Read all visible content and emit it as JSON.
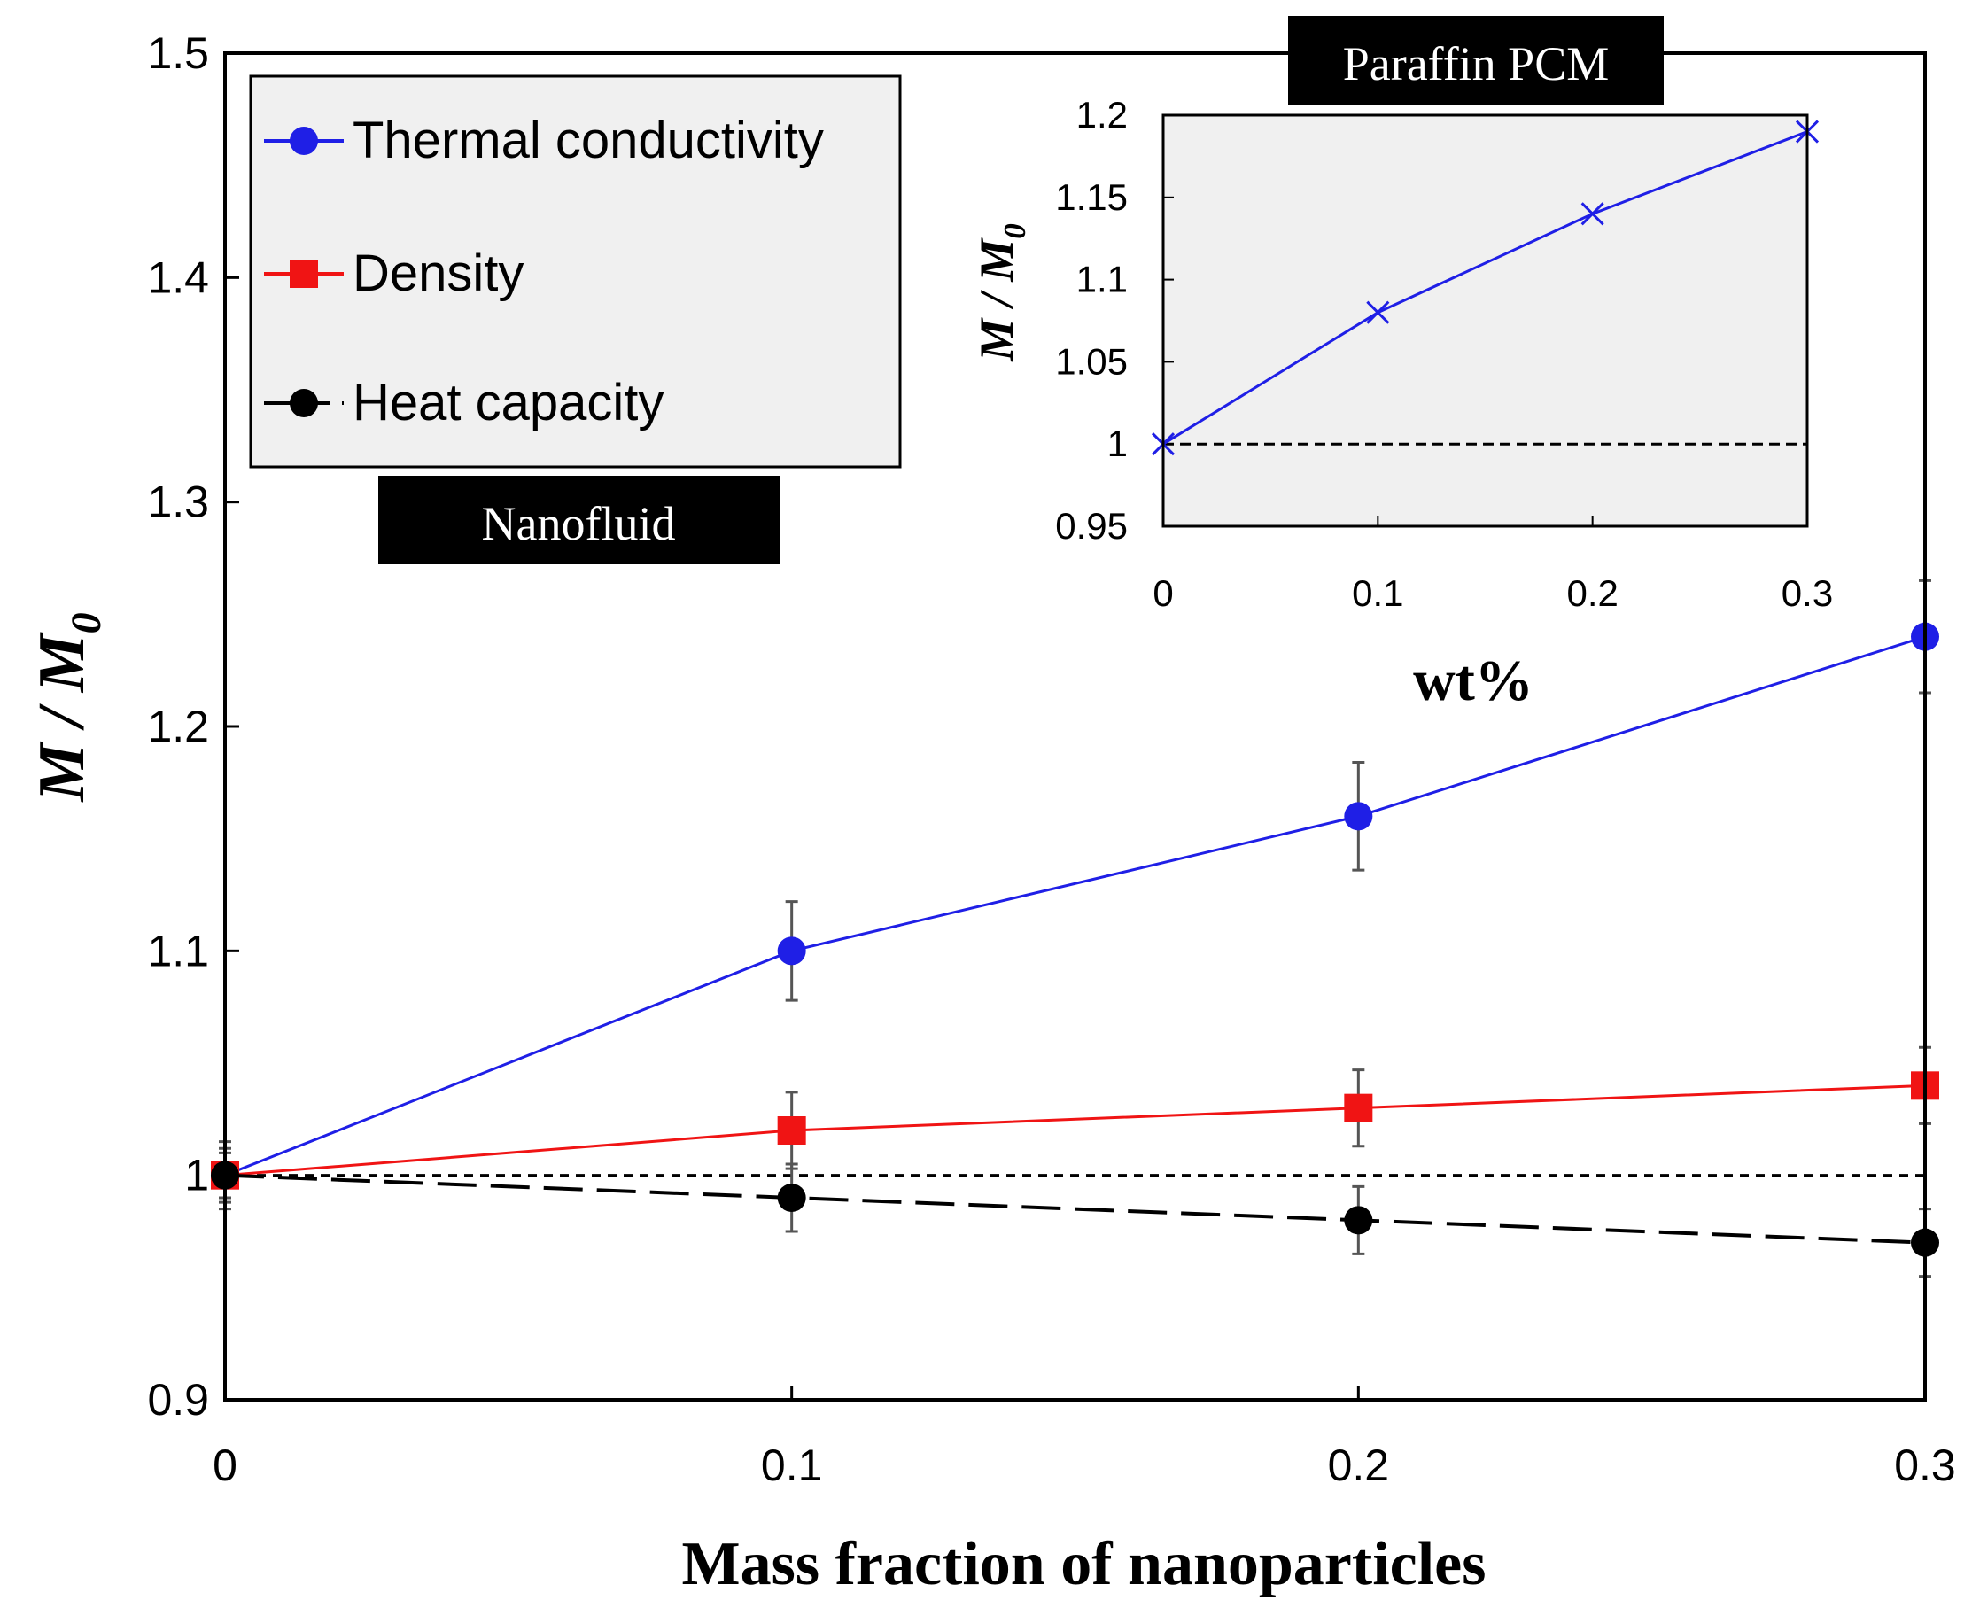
{
  "chart_data": [
    {
      "id": "main",
      "type": "line",
      "xlabel": "Mass fraction of nanoparticles",
      "ylabel_main": "M / M",
      "ylabel_sub": "0",
      "xlim": [
        0,
        0.3
      ],
      "ylim": [
        0.9,
        1.5
      ],
      "x_ticks": [
        0,
        0.1,
        0.2,
        0.3
      ],
      "x_tick_labels": [
        "0",
        "0.1",
        "0.2",
        "0.3"
      ],
      "y_ticks": [
        0.9,
        1.0,
        1.1,
        1.2,
        1.3,
        1.4,
        1.5
      ],
      "y_tick_labels": [
        "0.9",
        "1",
        "1.1",
        "1.2",
        "1.3",
        "1.4",
        "1.5"
      ],
      "reference_line": 1.0,
      "x": [
        0,
        0.1,
        0.2,
        0.3
      ],
      "series": [
        {
          "name": "Thermal conductivity",
          "values": [
            1.0,
            1.1,
            1.16,
            1.24
          ],
          "errors": [
            0.015,
            0.022,
            0.024,
            0.025
          ],
          "color": "#1f1fe6",
          "marker": "circle",
          "line": "solid"
        },
        {
          "name": "Density",
          "values": [
            1.0,
            1.02,
            1.03,
            1.04
          ],
          "errors": [
            0.012,
            0.017,
            0.017,
            0.017
          ],
          "color": "#f01414",
          "marker": "square",
          "line": "solid"
        },
        {
          "name": "Heat capacity",
          "values": [
            1.0,
            0.99,
            0.98,
            0.97
          ],
          "errors": [
            0.01,
            0.015,
            0.015,
            0.015
          ],
          "color": "#000000",
          "marker": "circle",
          "line": "dashed"
        }
      ],
      "legend_position": "top-left",
      "annotation": "Nanofluid"
    },
    {
      "id": "inset",
      "type": "line",
      "title": "Paraffin PCM",
      "xlabel": "wt%",
      "ylabel_main": "M / M",
      "ylabel_sub": "0",
      "xlim": [
        0,
        0.3
      ],
      "ylim": [
        0.95,
        1.2
      ],
      "x_ticks": [
        0,
        0.1,
        0.2,
        0.3
      ],
      "x_tick_labels": [
        "0",
        "0.1",
        "0.2",
        "0.3"
      ],
      "y_ticks": [
        0.95,
        1.0,
        1.05,
        1.1,
        1.15,
        1.2
      ],
      "y_tick_labels": [
        "0.95",
        "1",
        "1.05",
        "1.1",
        "1.15",
        "1.2"
      ],
      "reference_line": 1.0,
      "x": [
        0,
        0.1,
        0.2,
        0.3
      ],
      "series": [
        {
          "name": "Thermal conductivity",
          "values": [
            1.0,
            1.08,
            1.14,
            1.19
          ],
          "color": "#1f1fe6",
          "marker": "x",
          "line": "solid"
        }
      ]
    }
  ]
}
